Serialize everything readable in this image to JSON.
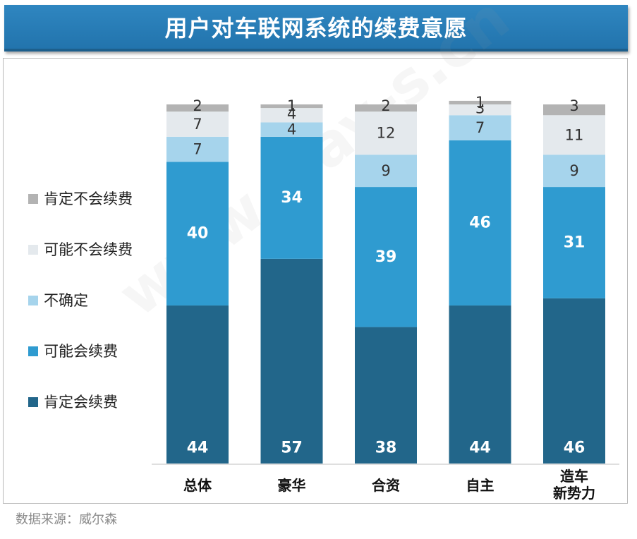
{
  "chart_data": {
    "type": "bar",
    "stacked": true,
    "title": "用户对车联网系统的续费意愿",
    "categories": [
      [
        "总体"
      ],
      [
        "豪华"
      ],
      [
        "合资"
      ],
      [
        "自主"
      ],
      [
        "造车",
        "新势力"
      ]
    ],
    "series": [
      {
        "name": "肯定会续费",
        "color": "#22668a",
        "label_color": "#ffffff",
        "label_bold": true,
        "values": [
          44,
          57,
          38,
          44,
          46
        ]
      },
      {
        "name": "可能会续费",
        "color": "#2f9bd0",
        "label_color": "#ffffff",
        "label_bold": true,
        "values": [
          40,
          34,
          39,
          46,
          31
        ]
      },
      {
        "name": "不确定",
        "color": "#a6d4ec",
        "label_color": "#333333",
        "label_bold": false,
        "values": [
          7,
          4,
          9,
          7,
          9
        ]
      },
      {
        "name": "可能不会续费",
        "color": "#e4e9ed",
        "label_color": "#333333",
        "label_bold": false,
        "values": [
          7,
          4,
          12,
          3,
          11
        ]
      },
      {
        "name": "肯定不会续费",
        "color": "#b3b3b3",
        "label_color": "#333333",
        "label_bold": false,
        "values": [
          2,
          1,
          2,
          1,
          3
        ]
      }
    ],
    "ylim": [
      0,
      100
    ],
    "grid": false,
    "legend_position": "left"
  },
  "watermark": "www.way-s.cn",
  "source": "数据来源：威尔森"
}
